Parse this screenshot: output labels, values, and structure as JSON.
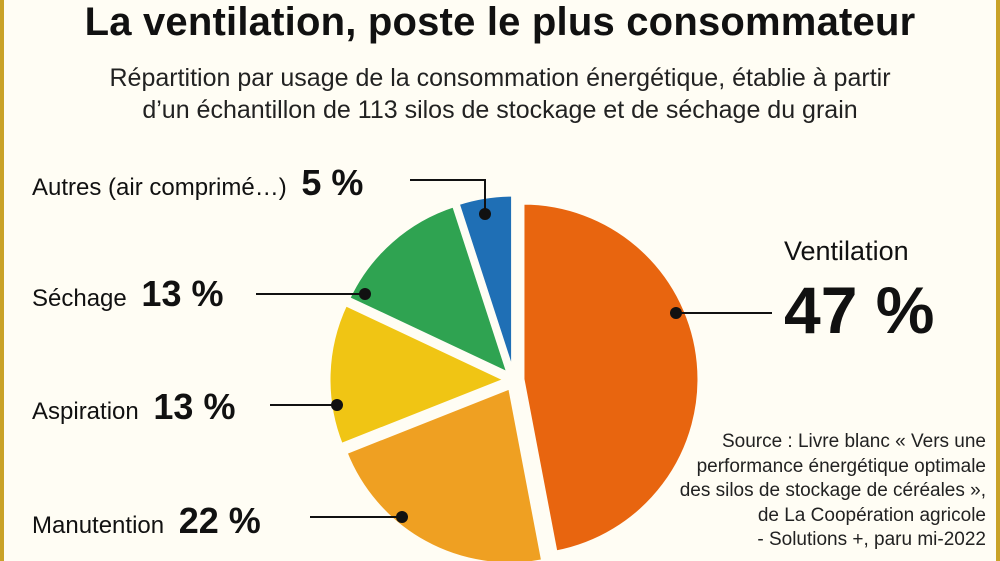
{
  "title": "La ventilation, poste le plus consommateur",
  "subtitle_line1": "Répartition par usage de la consommation énergétique, établie à partir",
  "subtitle_line2": "d’un échantillon de 113 silos de stockage et de séchage du grain",
  "source_lines": [
    "Source : Livre blanc « Vers une",
    "performance énergétique optimale",
    "des silos de stockage de céréales »,",
    "de La Coopération agricole",
    "- Solutions +, paru mi-2022"
  ],
  "chart_data": {
    "type": "pie",
    "title": "La ventilation, poste le plus consommateur",
    "slices": [
      {
        "label": "Ventilation",
        "value": 47,
        "display": "47 %",
        "color": "#e8650f"
      },
      {
        "label": "Manutention",
        "value": 22,
        "display": "22 %",
        "color": "#efa022"
      },
      {
        "label": "Aspiration",
        "value": 13,
        "display": "13 %",
        "color": "#f0c514"
      },
      {
        "label": "Séchage",
        "value": 13,
        "display": "13 %",
        "color": "#2fa351"
      },
      {
        "label": "Autres (air comprimé…)",
        "value": 5,
        "display": "5 %",
        "color": "#1f6fb5"
      }
    ]
  }
}
